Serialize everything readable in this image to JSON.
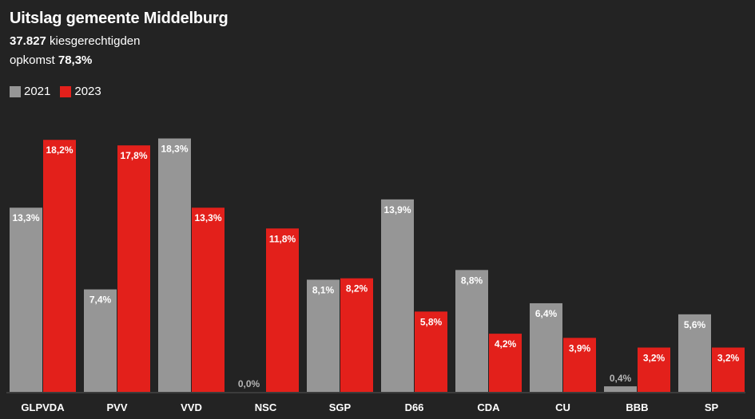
{
  "header": {
    "title": "Uitslag gemeente Middelburg",
    "voters_value": "37.827",
    "voters_label": " kiesgerechtigden",
    "turnout_label": "opkomst ",
    "turnout_value": "78,3%"
  },
  "colors": {
    "background": "#232323",
    "series_2021": "#969696",
    "series_2023": "#e3201b",
    "baseline": "#3c3c3c"
  },
  "chart_data": {
    "type": "bar",
    "categories": [
      "GLPVDA",
      "PVV",
      "VVD",
      "NSC",
      "SGP",
      "D66",
      "CDA",
      "CU",
      "BBB",
      "SP"
    ],
    "series": [
      {
        "name": "2021",
        "values": [
          13.3,
          7.4,
          18.3,
          0.0,
          8.1,
          13.9,
          8.8,
          6.4,
          0.4,
          5.6
        ],
        "labels": [
          "13,3%",
          "7,4%",
          "18,3%",
          "0,0%",
          "8,1%",
          "13,9%",
          "8,8%",
          "6,4%",
          "0,4%",
          "5,6%"
        ]
      },
      {
        "name": "2023",
        "values": [
          18.2,
          17.8,
          13.3,
          11.8,
          8.2,
          5.8,
          4.2,
          3.9,
          3.2,
          3.2
        ],
        "labels": [
          "18,2%",
          "17,8%",
          "13,3%",
          "11,8%",
          "8,2%",
          "5,8%",
          "4,2%",
          "3,9%",
          "3,2%",
          "3,2%"
        ]
      }
    ],
    "legend": "top-left",
    "grid": false
  }
}
